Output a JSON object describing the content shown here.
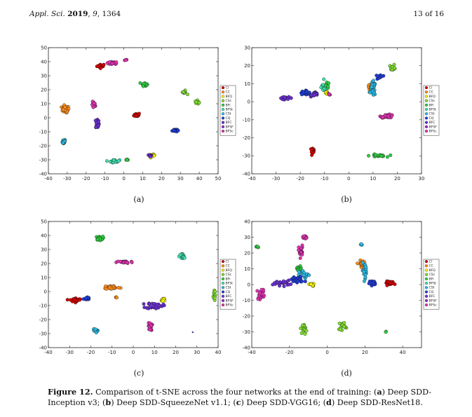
{
  "header": {
    "journal": "Appl. Sci.",
    "year": "2019",
    "volume": "9",
    "article": "1364",
    "page": "13 of 16"
  },
  "legend_labels": [
    "Cl",
    "CC",
    "BFQ",
    "CSc",
    "BFl",
    "BFSt",
    "CSt",
    "CQ",
    "BFC",
    "BFSF",
    "BFSc"
  ],
  "colors": [
    "#d10000",
    "#ff8c1a",
    "#f5f500",
    "#7fdd30",
    "#2ecc40",
    "#40e0b0",
    "#2ab8e0",
    "#1e3cd8",
    "#6a2fd0",
    "#a020d0",
    "#e030b0"
  ],
  "panel_labels": [
    "(a)",
    "(b)",
    "(c)",
    "(d)"
  ],
  "caption": {
    "figure": "Figure 12.",
    "intro": "Comparison of t-SNE across the four networks at the end of training: (",
    "a_label": "a",
    "a_text": ") Deep SDD-Inception v3; (",
    "b_label": "b",
    "b_text": ") Deep SDD-SqueezeNet v1.1; (",
    "c_label": "c",
    "c_text": ") Deep SDD-VGG16; (",
    "d_label": "d",
    "d_text": ") Deep SDD-ResNet18."
  },
  "chart_data": [
    {
      "type": "scatter",
      "xlim": [
        -40,
        50
      ],
      "ylim": [
        -40,
        50
      ],
      "xticks": [
        -40,
        -30,
        -20,
        -10,
        0,
        10,
        20,
        30,
        40,
        50
      ],
      "yticks": [
        -40,
        -30,
        -20,
        -10,
        0,
        10,
        20,
        30,
        40,
        50
      ],
      "legend": "right",
      "clusters": [
        {
          "x": -12,
          "y": 37,
          "sx": 2.0,
          "sy": 1.2,
          "c": 0,
          "n": 20
        },
        {
          "x": -6,
          "y": 39,
          "sx": 2.5,
          "sy": 0.8,
          "c": 10,
          "n": 22
        },
        {
          "x": 1,
          "y": 41,
          "sx": 0.6,
          "sy": 0.5,
          "c": 10,
          "n": 4
        },
        {
          "x": -31,
          "y": 6,
          "sx": 1.8,
          "sy": 2.2,
          "c": 1,
          "n": 32
        },
        {
          "x": -16,
          "y": 9,
          "sx": 0.8,
          "sy": 2.2,
          "c": 10,
          "n": 22
        },
        {
          "x": -14,
          "y": -4,
          "sx": 0.8,
          "sy": 3.5,
          "c": 8,
          "n": 26
        },
        {
          "x": -32,
          "y": -17,
          "sx": 1.0,
          "sy": 1.5,
          "c": 6,
          "n": 20
        },
        {
          "x": 7,
          "y": 2,
          "sx": 1.4,
          "sy": 1.2,
          "c": 0,
          "n": 24
        },
        {
          "x": 11,
          "y": 24,
          "sx": 1.2,
          "sy": 1.2,
          "c": 4,
          "n": 20
        },
        {
          "x": 32,
          "y": 18,
          "sx": 1.2,
          "sy": 1.2,
          "c": 3,
          "n": 10
        },
        {
          "x": 39,
          "y": 11,
          "sx": 1.0,
          "sy": 1.2,
          "c": 3,
          "n": 10
        },
        {
          "x": 27,
          "y": -9,
          "sx": 1.2,
          "sy": 1.0,
          "c": 7,
          "n": 22
        },
        {
          "x": -5,
          "y": -31,
          "sx": 2.5,
          "sy": 0.9,
          "c": 5,
          "n": 24
        },
        {
          "x": 2,
          "y": -30,
          "sx": 0.7,
          "sy": 0.5,
          "c": 4,
          "n": 4
        },
        {
          "x": 15,
          "y": -27,
          "sx": 1.3,
          "sy": 0.8,
          "c": 2,
          "n": 14
        },
        {
          "x": 14,
          "y": -27,
          "sx": 1.0,
          "sy": 0.6,
          "c": 8,
          "n": 10
        }
      ]
    },
    {
      "type": "scatter",
      "xlim": [
        -40,
        30
      ],
      "ylim": [
        -40,
        30
      ],
      "xticks": [
        -40,
        -30,
        -20,
        -10,
        0,
        10,
        20,
        30
      ],
      "yticks": [
        -40,
        -30,
        -20,
        -10,
        0,
        10,
        20,
        30
      ],
      "legend": "right",
      "clusters": [
        {
          "x": -26,
          "y": 2,
          "sx": 2.5,
          "sy": 0.6,
          "c": 8,
          "n": 14
        },
        {
          "x": -18,
          "y": 5,
          "sx": 1.8,
          "sy": 1.0,
          "c": 7,
          "n": 24
        },
        {
          "x": -14,
          "y": 4,
          "sx": 1.5,
          "sy": 1.2,
          "c": 8,
          "n": 20
        },
        {
          "x": -10,
          "y": 8,
          "sx": 1.2,
          "sy": 2.5,
          "c": 5,
          "n": 26
        },
        {
          "x": -9,
          "y": 5,
          "sx": 0.8,
          "sy": 1.0,
          "c": 2,
          "n": 8
        },
        {
          "x": -9,
          "y": 9,
          "sx": 0.8,
          "sy": 1.5,
          "c": 4,
          "n": 10
        },
        {
          "x": -8,
          "y": 4,
          "sx": 0.5,
          "sy": 0.5,
          "c": 10,
          "n": 4
        },
        {
          "x": 9,
          "y": 8,
          "sx": 1.0,
          "sy": 1.4,
          "c": 1,
          "n": 22
        },
        {
          "x": 10,
          "y": 7,
          "sx": 1.0,
          "sy": 3.5,
          "c": 6,
          "n": 32
        },
        {
          "x": 13,
          "y": 14,
          "sx": 1.0,
          "sy": 1.0,
          "c": 7,
          "n": 22
        },
        {
          "x": 18,
          "y": 19,
          "sx": 1.2,
          "sy": 1.5,
          "c": 3,
          "n": 14
        },
        {
          "x": 16,
          "y": -8,
          "sx": 2.5,
          "sy": 0.8,
          "c": 10,
          "n": 28
        },
        {
          "x": -15,
          "y": -27,
          "sx": 0.8,
          "sy": 1.2,
          "c": 0,
          "n": 18
        },
        {
          "x": 12,
          "y": -30,
          "sx": 3.0,
          "sy": 0.7,
          "c": 4,
          "n": 24
        }
      ]
    },
    {
      "type": "scatter",
      "xlim": [
        -40,
        40
      ],
      "ylim": [
        -40,
        50
      ],
      "xticks": [
        -40,
        -30,
        -20,
        -10,
        0,
        10,
        20,
        30,
        40
      ],
      "yticks": [
        -40,
        -30,
        -20,
        -10,
        0,
        10,
        20,
        30,
        40,
        50
      ],
      "legend": "right",
      "clusters": [
        {
          "x": -16,
          "y": 38,
          "sx": 1.5,
          "sy": 1.2,
          "c": 4,
          "n": 22
        },
        {
          "x": 23,
          "y": 25,
          "sx": 1.2,
          "sy": 2.0,
          "c": 5,
          "n": 26
        },
        {
          "x": -4,
          "y": 21,
          "sx": 3.5,
          "sy": 0.8,
          "c": 10,
          "n": 26
        },
        {
          "x": -10,
          "y": 3,
          "sx": 3.5,
          "sy": 1.3,
          "c": 1,
          "n": 28
        },
        {
          "x": -27,
          "y": -6,
          "sx": 2.5,
          "sy": 1.2,
          "c": 0,
          "n": 32
        },
        {
          "x": -22,
          "y": -5,
          "sx": 1.2,
          "sy": 1.0,
          "c": 7,
          "n": 16
        },
        {
          "x": -8,
          "y": -4,
          "sx": 0.4,
          "sy": 0.4,
          "c": 1,
          "n": 3
        },
        {
          "x": 10,
          "y": -10,
          "sx": 3.5,
          "sy": 2.0,
          "c": 8,
          "n": 36
        },
        {
          "x": 14,
          "y": -6,
          "sx": 1.2,
          "sy": 1.5,
          "c": 2,
          "n": 12
        },
        {
          "x": 38,
          "y": -3,
          "sx": 0.6,
          "sy": 3.0,
          "c": 3,
          "n": 14
        },
        {
          "x": -18,
          "y": -28,
          "sx": 1.0,
          "sy": 1.3,
          "c": 6,
          "n": 18
        },
        {
          "x": 8,
          "y": -25,
          "sx": 0.8,
          "sy": 2.5,
          "c": 10,
          "n": 22
        },
        {
          "x": 28,
          "y": -29,
          "sx": 0.2,
          "sy": 0.2,
          "c": 7,
          "n": 1
        }
      ]
    },
    {
      "type": "scatter",
      "xlim": [
        -40,
        50
      ],
      "ylim": [
        -40,
        40
      ],
      "xticks": [
        -40,
        -20,
        0,
        20,
        40
      ],
      "yticks": [
        -40,
        -30,
        -20,
        -10,
        0,
        10,
        20,
        30,
        40
      ],
      "legend": "right",
      "clusters": [
        {
          "x": -37,
          "y": 24,
          "sx": 0.6,
          "sy": 0.6,
          "c": 4,
          "n": 6
        },
        {
          "x": -12,
          "y": 30,
          "sx": 1.0,
          "sy": 1.0,
          "c": 10,
          "n": 10
        },
        {
          "x": -14,
          "y": 21,
          "sx": 1.0,
          "sy": 3.5,
          "c": 10,
          "n": 24
        },
        {
          "x": -15,
          "y": 10,
          "sx": 1.5,
          "sy": 1.5,
          "c": 4,
          "n": 16
        },
        {
          "x": -12,
          "y": 6,
          "sx": 2.5,
          "sy": 2.5,
          "c": 6,
          "n": 18
        },
        {
          "x": -16,
          "y": 3,
          "sx": 3.5,
          "sy": 2.0,
          "c": 7,
          "n": 32
        },
        {
          "x": -24,
          "y": 1,
          "sx": 4.0,
          "sy": 1.5,
          "c": 8,
          "n": 22
        },
        {
          "x": -35,
          "y": -6,
          "sx": 2.0,
          "sy": 3.0,
          "c": 10,
          "n": 22
        },
        {
          "x": -8,
          "y": 0,
          "sx": 1.5,
          "sy": 1.0,
          "c": 2,
          "n": 10
        },
        {
          "x": 18,
          "y": 13,
          "sx": 1.2,
          "sy": 2.0,
          "c": 1,
          "n": 18
        },
        {
          "x": 20,
          "y": 9,
          "sx": 1.3,
          "sy": 4.0,
          "c": 6,
          "n": 30
        },
        {
          "x": 18,
          "y": 25,
          "sx": 0.5,
          "sy": 0.8,
          "c": 6,
          "n": 4
        },
        {
          "x": 24,
          "y": 1,
          "sx": 1.5,
          "sy": 1.2,
          "c": 7,
          "n": 22
        },
        {
          "x": 34,
          "y": 1,
          "sx": 3.0,
          "sy": 1.0,
          "c": 0,
          "n": 26
        },
        {
          "x": -12,
          "y": -28,
          "sx": 1.0,
          "sy": 3.0,
          "c": 3,
          "n": 16
        },
        {
          "x": 8,
          "y": -26,
          "sx": 1.5,
          "sy": 2.5,
          "c": 3,
          "n": 16
        },
        {
          "x": 31,
          "y": -30,
          "sx": 0.4,
          "sy": 0.4,
          "c": 4,
          "n": 2
        }
      ]
    }
  ]
}
